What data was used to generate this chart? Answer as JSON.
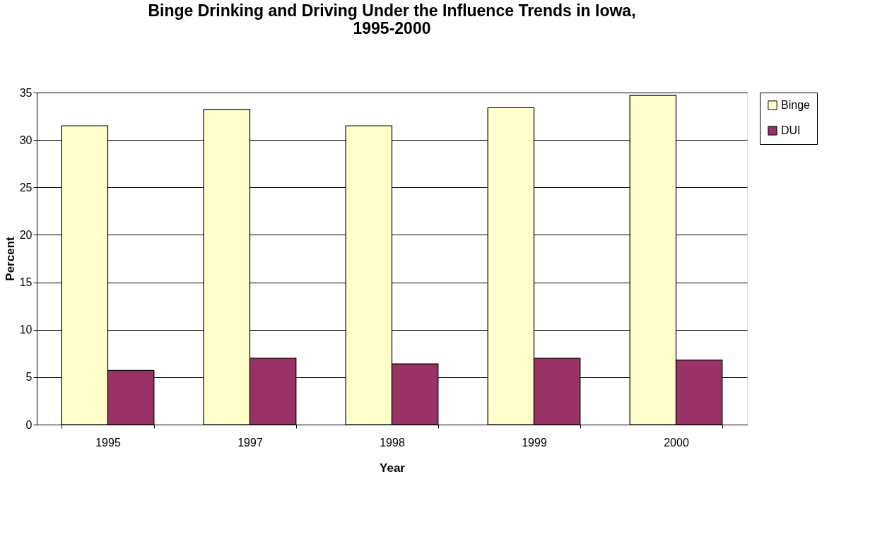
{
  "chart_data": {
    "type": "bar",
    "title": "Binge Drinking and Driving Under the Influence Trends in Iowa, 1995-2000",
    "xlabel": "Year",
    "ylabel": "Percent",
    "categories": [
      "1995",
      "1997",
      "1998",
      "1999",
      "2000"
    ],
    "series": [
      {
        "name": "Binge",
        "color": "#ffffcc",
        "values": [
          31.5,
          33.2,
          31.5,
          33.4,
          34.7
        ]
      },
      {
        "name": "DUI",
        "color": "#993366",
        "values": [
          5.7,
          7.0,
          6.4,
          7.0,
          6.8
        ]
      }
    ],
    "ylim": [
      0,
      35
    ],
    "yticks": [
      0,
      5,
      10,
      15,
      20,
      25,
      30,
      35
    ],
    "grid": "y",
    "legend": "right"
  }
}
